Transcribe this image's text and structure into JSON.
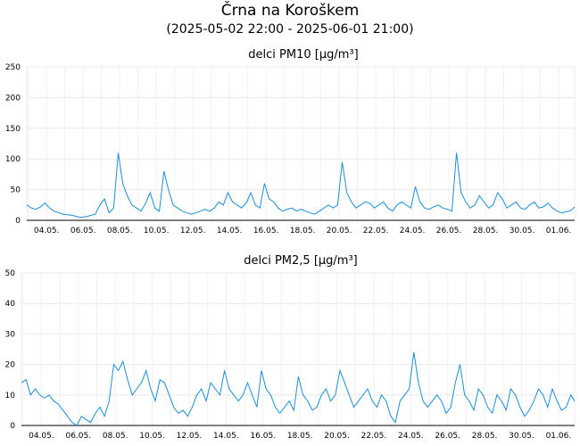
{
  "header": {
    "title": "Črna na Koroškem",
    "subtitle": "(2025-05-02 22:00 - 2025-06-01 21:00)"
  },
  "colors": {
    "series": "#1a8fd6",
    "grid": "#e9e9e9"
  },
  "chart_data": [
    {
      "type": "line",
      "title": "delci PM10 [µg/m³]",
      "xlabel": "",
      "ylabel": "",
      "ylim": [
        0,
        250
      ],
      "yticks": [
        "0",
        "50",
        "100",
        "150",
        "200",
        "250"
      ],
      "xticks": [
        "04.05.",
        "06.05.",
        "08.05.",
        "10.05.",
        "12.05.",
        "14.05.",
        "16.05.",
        "18.05.",
        "20.05.",
        "22.05.",
        "24.05.",
        "26.05.",
        "28.05.",
        "30.05.",
        "01.06."
      ],
      "grid": true,
      "series": [
        {
          "x": [
            "2025-05-02 22:00",
            "2025-05-03 04:00",
            "2025-05-03 10:00",
            "2025-05-03 16:00",
            "2025-05-03 22:00",
            "2025-05-04 04:00",
            "2025-05-04 10:00",
            "2025-05-04 16:00",
            "2025-05-04 22:00",
            "2025-05-05 04:00",
            "2025-05-05 10:00",
            "2025-05-05 16:00",
            "2025-05-05 22:00",
            "2025-05-06 04:00",
            "2025-05-06 10:00",
            "2025-05-06 16:00",
            "2025-05-06 22:00",
            "2025-05-07 04:00",
            "2025-05-07 10:00",
            "2025-05-07 16:00",
            "2025-05-07 22:00",
            "2025-05-08 04:00",
            "2025-05-08 10:00",
            "2025-05-08 16:00",
            "2025-05-08 22:00",
            "2025-05-09 04:00",
            "2025-05-09 10:00",
            "2025-05-09 16:00",
            "2025-05-09 22:00",
            "2025-05-10 04:00",
            "2025-05-10 10:00",
            "2025-05-10 16:00",
            "2025-05-10 22:00",
            "2025-05-11 04:00",
            "2025-05-11 10:00",
            "2025-05-11 16:00",
            "2025-05-11 22:00",
            "2025-05-12 04:00",
            "2025-05-12 10:00",
            "2025-05-12 16:00",
            "2025-05-12 22:00",
            "2025-05-13 04:00",
            "2025-05-13 10:00",
            "2025-05-13 16:00",
            "2025-05-13 22:00",
            "2025-05-14 04:00",
            "2025-05-14 10:00",
            "2025-05-14 16:00",
            "2025-05-14 22:00",
            "2025-05-15 04:00",
            "2025-05-15 10:00",
            "2025-05-15 16:00",
            "2025-05-15 22:00",
            "2025-05-16 04:00",
            "2025-05-16 10:00",
            "2025-05-16 16:00",
            "2025-05-16 22:00",
            "2025-05-17 04:00",
            "2025-05-17 10:00",
            "2025-05-17 16:00",
            "2025-05-17 22:00",
            "2025-05-18 04:00",
            "2025-05-18 10:00",
            "2025-05-18 16:00",
            "2025-05-18 22:00",
            "2025-05-19 04:00",
            "2025-05-19 10:00",
            "2025-05-19 16:00",
            "2025-05-19 22:00",
            "2025-05-20 04:00",
            "2025-05-20 10:00",
            "2025-05-20 16:00",
            "2025-05-20 22:00",
            "2025-05-21 04:00",
            "2025-05-21 10:00",
            "2025-05-21 16:00",
            "2025-05-21 22:00",
            "2025-05-22 04:00",
            "2025-05-22 10:00",
            "2025-05-22 16:00",
            "2025-05-22 22:00",
            "2025-05-23 04:00",
            "2025-05-23 10:00",
            "2025-05-23 16:00",
            "2025-05-23 22:00",
            "2025-05-24 04:00",
            "2025-05-24 10:00",
            "2025-05-24 16:00",
            "2025-05-24 22:00",
            "2025-05-25 04:00",
            "2025-05-25 10:00",
            "2025-05-25 16:00",
            "2025-05-25 22:00",
            "2025-05-26 04:00",
            "2025-05-26 10:00",
            "2025-05-26 16:00",
            "2025-05-26 22:00",
            "2025-05-27 04:00",
            "2025-05-27 10:00",
            "2025-05-27 16:00",
            "2025-05-27 22:00",
            "2025-05-28 04:00",
            "2025-05-28 10:00",
            "2025-05-28 16:00",
            "2025-05-28 22:00",
            "2025-05-29 04:00",
            "2025-05-29 10:00",
            "2025-05-29 16:00",
            "2025-05-29 22:00",
            "2025-05-30 04:00",
            "2025-05-30 10:00",
            "2025-05-30 16:00",
            "2025-05-30 22:00",
            "2025-05-31 04:00",
            "2025-05-31 10:00",
            "2025-05-31 16:00",
            "2025-05-31 22:00",
            "2025-06-01 04:00",
            "2025-06-01 10:00",
            "2025-06-01 16:00",
            "2025-06-01 21:00"
          ],
          "values": [
            25,
            20,
            18,
            22,
            28,
            20,
            15,
            12,
            10,
            9,
            8,
            6,
            5,
            6,
            8,
            10,
            25,
            35,
            12,
            20,
            110,
            60,
            40,
            25,
            20,
            15,
            28,
            45,
            20,
            15,
            80,
            50,
            25,
            20,
            15,
            12,
            10,
            12,
            15,
            18,
            15,
            20,
            30,
            25,
            45,
            30,
            25,
            20,
            28,
            45,
            25,
            20,
            60,
            35,
            30,
            20,
            15,
            18,
            20,
            15,
            18,
            15,
            12,
            10,
            15,
            20,
            25,
            20,
            25,
            95,
            45,
            30,
            20,
            25,
            30,
            28,
            20,
            25,
            30,
            20,
            15,
            25,
            30,
            25,
            20,
            55,
            30,
            20,
            18,
            22,
            25,
            20,
            18,
            15,
            110,
            45,
            30,
            20,
            25,
            40,
            30,
            20,
            25,
            45,
            35,
            20,
            25,
            30,
            20,
            18,
            25,
            30,
            20,
            22,
            28,
            20,
            15,
            12,
            14,
            16,
            22
          ]
        }
      ]
    },
    {
      "type": "line",
      "title": "delci PM2,5 [µg/m³]",
      "xlabel": "",
      "ylabel": "",
      "ylim": [
        0,
        50
      ],
      "yticks": [
        "0",
        "10",
        "20",
        "30",
        "40",
        "50"
      ],
      "xticks": [
        "04.05.",
        "06.05.",
        "08.05.",
        "10.05.",
        "12.05.",
        "14.05.",
        "16.05.",
        "18.05.",
        "20.05.",
        "22.05.",
        "24.05.",
        "26.05.",
        "28.05.",
        "30.05.",
        "01.06."
      ],
      "grid": true,
      "series": [
        {
          "x": [
            "2025-05-02 22:00",
            "2025-05-03 04:00",
            "2025-05-03 10:00",
            "2025-05-03 16:00",
            "2025-05-03 22:00",
            "2025-05-04 04:00",
            "2025-05-04 10:00",
            "2025-05-04 16:00",
            "2025-05-04 22:00",
            "2025-05-05 04:00",
            "2025-05-05 10:00",
            "2025-05-05 16:00",
            "2025-05-05 22:00",
            "2025-05-06 04:00",
            "2025-05-06 10:00",
            "2025-05-06 16:00",
            "2025-05-06 22:00",
            "2025-05-07 04:00",
            "2025-05-07 10:00",
            "2025-05-07 16:00",
            "2025-05-07 22:00",
            "2025-05-08 04:00",
            "2025-05-08 10:00",
            "2025-05-08 16:00",
            "2025-05-08 22:00",
            "2025-05-09 04:00",
            "2025-05-09 10:00",
            "2025-05-09 16:00",
            "2025-05-09 22:00",
            "2025-05-10 04:00",
            "2025-05-10 10:00",
            "2025-05-10 16:00",
            "2025-05-10 22:00",
            "2025-05-11 04:00",
            "2025-05-11 10:00",
            "2025-05-11 16:00",
            "2025-05-11 22:00",
            "2025-05-12 04:00",
            "2025-05-12 10:00",
            "2025-05-12 16:00",
            "2025-05-12 22:00",
            "2025-05-13 04:00",
            "2025-05-13 10:00",
            "2025-05-13 16:00",
            "2025-05-13 22:00",
            "2025-05-14 04:00",
            "2025-05-14 10:00",
            "2025-05-14 16:00",
            "2025-05-14 22:00",
            "2025-05-15 04:00",
            "2025-05-15 10:00",
            "2025-05-15 16:00",
            "2025-05-15 22:00",
            "2025-05-16 04:00",
            "2025-05-16 10:00",
            "2025-05-16 16:00",
            "2025-05-16 22:00",
            "2025-05-17 04:00",
            "2025-05-17 10:00",
            "2025-05-17 16:00",
            "2025-05-17 22:00",
            "2025-05-18 04:00",
            "2025-05-18 10:00",
            "2025-05-18 16:00",
            "2025-05-18 22:00",
            "2025-05-19 04:00",
            "2025-05-19 10:00",
            "2025-05-19 16:00",
            "2025-05-19 22:00",
            "2025-05-20 04:00",
            "2025-05-20 10:00",
            "2025-05-20 16:00",
            "2025-05-20 22:00",
            "2025-05-21 04:00",
            "2025-05-21 10:00",
            "2025-05-21 16:00",
            "2025-05-21 22:00",
            "2025-05-22 04:00",
            "2025-05-22 10:00",
            "2025-05-22 16:00",
            "2025-05-22 22:00",
            "2025-05-23 04:00",
            "2025-05-23 10:00",
            "2025-05-23 16:00",
            "2025-05-23 22:00",
            "2025-05-24 04:00",
            "2025-05-24 10:00",
            "2025-05-24 16:00",
            "2025-05-24 22:00",
            "2025-05-25 04:00",
            "2025-05-25 10:00",
            "2025-05-25 16:00",
            "2025-05-25 22:00",
            "2025-05-26 04:00",
            "2025-05-26 10:00",
            "2025-05-26 16:00",
            "2025-05-26 22:00",
            "2025-05-27 04:00",
            "2025-05-27 10:00",
            "2025-05-27 16:00",
            "2025-05-27 22:00",
            "2025-05-28 04:00",
            "2025-05-28 10:00",
            "2025-05-28 16:00",
            "2025-05-28 22:00",
            "2025-05-29 04:00",
            "2025-05-29 10:00",
            "2025-05-29 16:00",
            "2025-05-29 22:00",
            "2025-05-30 04:00",
            "2025-05-30 10:00",
            "2025-05-30 16:00",
            "2025-05-30 22:00",
            "2025-05-31 04:00",
            "2025-05-31 10:00",
            "2025-05-31 16:00",
            "2025-05-31 22:00",
            "2025-06-01 04:00",
            "2025-06-01 10:00",
            "2025-06-01 16:00",
            "2025-06-01 21:00"
          ],
          "values": [
            14,
            15,
            10,
            12,
            10,
            9,
            10,
            8,
            7,
            5,
            3,
            1,
            0,
            3,
            2,
            1,
            4,
            6,
            3,
            8,
            20,
            18,
            21,
            15,
            10,
            12,
            14,
            18,
            12,
            8,
            15,
            14,
            10,
            6,
            4,
            5,
            3,
            6,
            10,
            12,
            8,
            14,
            12,
            10,
            18,
            12,
            10,
            8,
            10,
            14,
            10,
            6,
            18,
            12,
            10,
            6,
            4,
            6,
            8,
            5,
            16,
            10,
            8,
            5,
            6,
            10,
            12,
            8,
            10,
            18,
            14,
            10,
            6,
            8,
            10,
            12,
            8,
            6,
            10,
            8,
            3,
            1,
            8,
            10,
            12,
            24,
            14,
            8,
            6,
            8,
            10,
            8,
            4,
            6,
            14,
            20,
            10,
            8,
            5,
            12,
            10,
            6,
            4,
            10,
            8,
            5,
            12,
            10,
            6,
            3,
            5,
            8,
            12,
            10,
            6,
            12,
            8,
            5,
            6,
            10,
            8
          ]
        }
      ]
    }
  ]
}
